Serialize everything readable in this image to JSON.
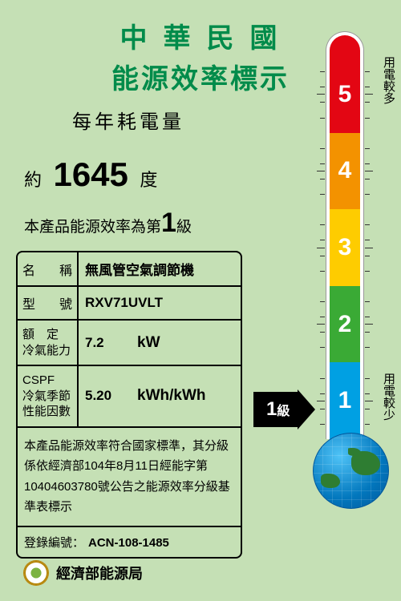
{
  "header": {
    "title": "中華民國",
    "subtitle": "能源效率標示",
    "annual_label": "每年耗電量"
  },
  "consumption": {
    "approx": "約",
    "value": "1645",
    "unit": "度"
  },
  "grade_line": {
    "prefix": "本產品能源效率為第",
    "grade": "1",
    "suffix": "級"
  },
  "info": {
    "rows": [
      {
        "label_chars": [
          "名",
          "稱"
        ],
        "value": "無風管空氣調節機",
        "type": "text"
      },
      {
        "label_chars": [
          "型",
          "號"
        ],
        "value": "RXV71UVLT",
        "type": "text"
      },
      {
        "label_lines": [
          "額　定",
          "冷氣能力"
        ],
        "value": "7.2",
        "unit": "kW",
        "type": "measure"
      },
      {
        "label_lines": [
          "CSPF",
          "冷氣季節",
          "性能因數"
        ],
        "value": "5.20",
        "unit": "kWh/kWh",
        "type": "measure"
      }
    ],
    "standard_text": "本產品能源效率符合國家標準，其分級係依經濟部104年8月11日經能字第10404603780號公告之能源效率分級基準表標示",
    "reg_label": "登錄編號：",
    "reg_number": "ACN-108-1485"
  },
  "footer": {
    "agency": "經濟部能源局"
  },
  "thermometer": {
    "segments": [
      {
        "n": "1",
        "color": "#00a0e3"
      },
      {
        "n": "2",
        "color": "#3aaa35"
      },
      {
        "n": "3",
        "color": "#fecc00"
      },
      {
        "n": "4",
        "color": "#f39200"
      },
      {
        "n": "5",
        "color": "#e30613"
      }
    ],
    "top_color": "#e30613",
    "label_more": "用電較多",
    "label_less": "用電較少",
    "current_grade": "1",
    "grade_suffix": "級"
  }
}
